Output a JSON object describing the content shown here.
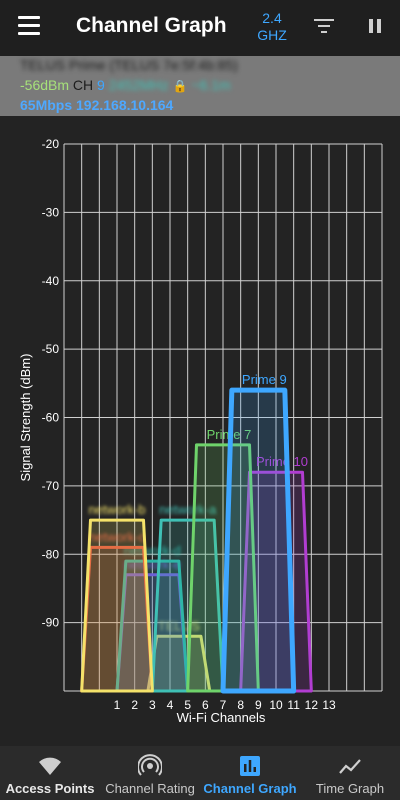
{
  "header": {
    "title": "Channel Graph",
    "band_line1": "2.4",
    "band_line2": "GHZ"
  },
  "connection": {
    "ssid_mac": "TELUS Prime (TELUS 7e:5f:4b:85)",
    "signal": "-56dBm",
    "ch_label": "CH",
    "channel": "9",
    "frequency": "2452MHz",
    "distance": "~6.1m",
    "speed_ip": "65Mbps 192.168.10.164"
  },
  "chart_data": {
    "type": "area",
    "xlabel": "Wi-Fi Channels",
    "ylabel": "Signal Strength (dBm)",
    "x_ticks": [
      "1",
      "2",
      "3",
      "4",
      "5",
      "6",
      "7",
      "8",
      "9",
      "10",
      "11",
      "12",
      "13"
    ],
    "y_ticks": [
      "-20",
      "-30",
      "-40",
      "-50",
      "-60",
      "-70",
      "-80",
      "-90"
    ],
    "xlim": [
      -2,
      16
    ],
    "ylim": [
      -100,
      -20
    ],
    "series": [
      {
        "name": "Prime 9",
        "center": 9,
        "width": 4,
        "dbm": -56,
        "color": "#3ea7ff",
        "blur": false
      },
      {
        "name": "Prime 7",
        "center": 7,
        "width": 4,
        "dbm": -64,
        "color": "#6fd36b",
        "blur": false
      },
      {
        "name": "Prime 10",
        "center": 10,
        "width": 4,
        "dbm": -68,
        "color": "#b13dd1",
        "blur": false
      },
      {
        "name": "network-a",
        "center": 5,
        "width": 4,
        "dbm": -75,
        "color": "#3fc0b5",
        "blur": true
      },
      {
        "name": "network-b",
        "center": 1,
        "width": 4,
        "dbm": -75,
        "color": "#f4e26a",
        "blur": true
      },
      {
        "name": "network-c",
        "center": 1,
        "width": 4,
        "dbm": -79,
        "color": "#e2533c",
        "blur": true
      },
      {
        "name": "network-d",
        "center": 3,
        "width": 4,
        "dbm": -81,
        "color": "#2bb3a4",
        "blur": true
      },
      {
        "name": "network-e",
        "center": 3,
        "width": 4,
        "dbm": -83,
        "color": "#7a4de0",
        "blur": true
      },
      {
        "name": "TELUS",
        "center": 4.5,
        "width": 3.5,
        "dbm": -92,
        "color": "#f4e26a",
        "blur": true
      }
    ],
    "grid": true
  },
  "bottom_nav": [
    {
      "label": "Access Points",
      "icon": "wifi-icon"
    },
    {
      "label": "Channel Rating",
      "icon": "signal-rating-icon"
    },
    {
      "label": "Channel Graph",
      "icon": "bar-chart-icon"
    },
    {
      "label": "Time Graph",
      "icon": "line-chart-icon"
    }
  ]
}
